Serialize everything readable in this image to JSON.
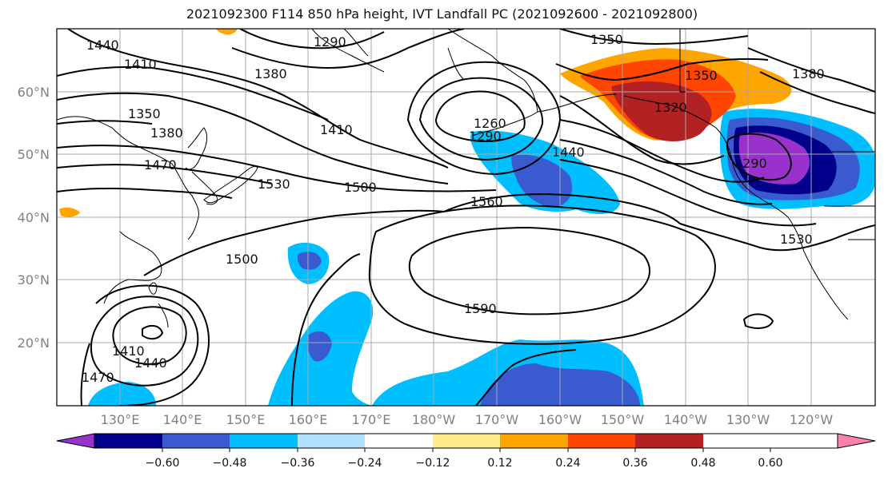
{
  "title": "2021092300 F114 850 hPa height, IVT Landfall PC (2021092600 - 2021092800)",
  "lat_labels": [
    "60°N",
    "50°N",
    "40°N",
    "30°N",
    "20°N"
  ],
  "lon_labels": [
    "130°E",
    "140°E",
    "150°E",
    "160°E",
    "170°E",
    "180°W",
    "170°W",
    "160°W",
    "150°W",
    "140°W",
    "130°W",
    "120°W"
  ],
  "contour_labels": [
    "1440",
    "1410",
    "1290",
    "1350",
    "1380",
    "1350",
    "1380",
    "1350",
    "1380",
    "1410",
    "1320",
    "1260",
    "1290",
    "1470",
    "1440",
    "1530",
    "1500",
    "1560",
    "1500",
    "1590",
    "1530",
    "1290",
    "1410",
    "1440",
    "1470"
  ],
  "colorbar": {
    "colors": [
      "#9932cc",
      "#00008b",
      "#3a5bcf",
      "#00bfff",
      "#b0e2ff",
      "#ffffff",
      "#ffec8b",
      "#ffa500",
      "#ff4500",
      "#b22222",
      "#ff82ab"
    ],
    "ticks": [
      "−0.60",
      "−0.48",
      "−0.36",
      "−0.24",
      "−0.12",
      "0.12",
      "0.24",
      "0.36",
      "0.48",
      "0.60"
    ]
  }
}
